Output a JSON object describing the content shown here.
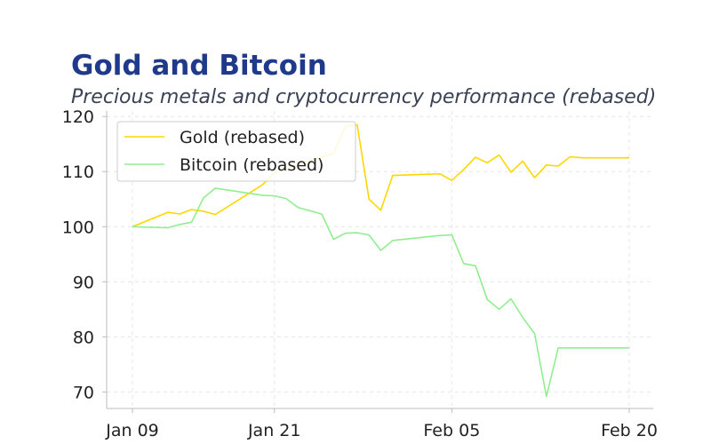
{
  "chart_data": {
    "type": "line",
    "title": "Gold and Bitcoin",
    "subtitle": "Precious metals and cryptocurrency performance (rebased)",
    "xlabel": "",
    "ylabel": "",
    "x": [
      "2024-01-09",
      "2024-01-12",
      "2024-01-13",
      "2024-01-14",
      "2024-01-15",
      "2024-01-16",
      "2024-01-20",
      "2024-01-21",
      "2024-01-22",
      "2024-01-23",
      "2024-01-24",
      "2024-01-25",
      "2024-01-26",
      "2024-01-27",
      "2024-01-28",
      "2024-01-29",
      "2024-01-30",
      "2024-01-31",
      "2024-02-04",
      "2024-02-05",
      "2024-02-06",
      "2024-02-07",
      "2024-02-08",
      "2024-02-09",
      "2024-02-10",
      "2024-02-11",
      "2024-02-12",
      "2024-02-13",
      "2024-02-14",
      "2024-02-15",
      "2024-02-16",
      "2024-02-17",
      "2024-02-18",
      "2024-02-19",
      "2024-02-20"
    ],
    "series": [
      {
        "name": "Gold (rebased)",
        "color": "#ffd700",
        "values": [
          100.0,
          102.6,
          102.3,
          103.1,
          102.8,
          102.2,
          107.6,
          109.8,
          110.5,
          111.2,
          111.9,
          112.6,
          113.3,
          118.2,
          118.5,
          105.0,
          103.0,
          109.3,
          109.6,
          108.4,
          110.4,
          112.6,
          111.6,
          113.0,
          109.9,
          111.9,
          108.9,
          111.2,
          111.0,
          112.7,
          112.5,
          112.5,
          112.5,
          112.5,
          112.5
        ]
      },
      {
        "name": "Bitcoin (rebased)",
        "color": "#90ee90",
        "values": [
          100.0,
          99.8,
          100.4,
          100.8,
          105.2,
          107.0,
          105.7,
          105.6,
          105.1,
          103.5,
          102.9,
          102.3,
          97.7,
          98.8,
          98.9,
          98.5,
          95.7,
          97.5,
          98.4,
          98.5,
          93.3,
          92.9,
          86.8,
          85.0,
          86.9,
          83.5,
          80.6,
          69.2,
          78.0,
          78.0,
          78.0,
          78.0,
          78.0,
          78.0,
          78.0
        ]
      }
    ],
    "x_ticks": [
      "Jan 09",
      "Jan 21",
      "Feb 05",
      "Feb 20"
    ],
    "y_ticks": [
      70,
      80,
      90,
      100,
      110,
      120
    ],
    "ylim": [
      67,
      121
    ],
    "grid": true,
    "legend_position": "top-left"
  }
}
